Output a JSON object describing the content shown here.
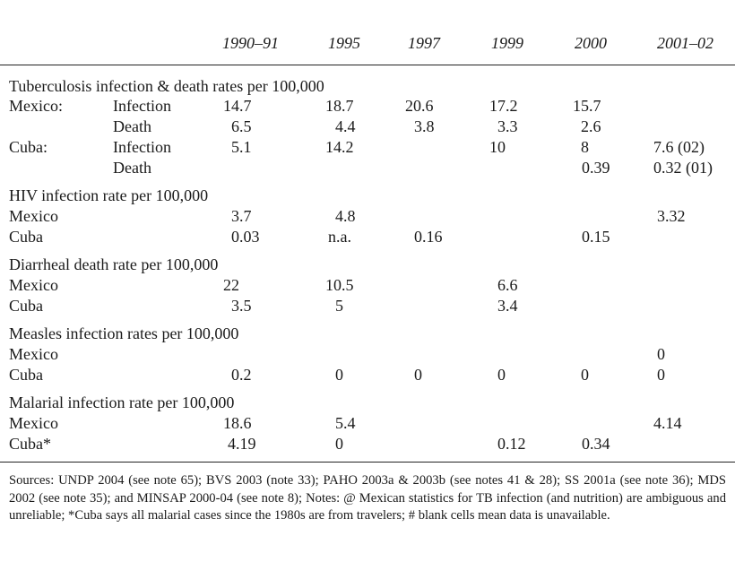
{
  "years": [
    "1990–91",
    "1995",
    "1997",
    "1999",
    "2000",
    "2001–02"
  ],
  "tb": {
    "heading": "Tuberculosis infection & death rates per 100,000",
    "mexico_label": "Mexico:",
    "cuba_label": "Cuba:",
    "infection_label": "Infection",
    "death_label": "Death",
    "mexico_infection": [
      "14.7",
      "18.7",
      "20.6",
      "17.2",
      "15.7",
      ""
    ],
    "mexico_death": [
      "6.5",
      "4.4",
      "3.8",
      "3.3",
      "2.6",
      ""
    ],
    "cuba_infection": [
      "5.1",
      "14.2",
      "",
      "10",
      "8",
      "7.6 (02)"
    ],
    "cuba_death": [
      "",
      "",
      "",
      "",
      "0.39",
      "0.32 (01)"
    ]
  },
  "hiv": {
    "heading": "HIV infection rate per 100,000",
    "mexico_label": "Mexico",
    "cuba_label": "Cuba",
    "mexico": [
      "3.7",
      "4.8",
      "",
      "",
      "",
      "3.32"
    ],
    "cuba": [
      "0.03",
      "n.a.",
      "0.16",
      "",
      "0.15",
      ""
    ]
  },
  "diarrheal": {
    "heading": "Diarrheal death rate per 100,000",
    "mexico_label": "Mexico",
    "cuba_label": "Cuba",
    "mexico": [
      "22",
      "10.5",
      "",
      "6.6",
      "",
      ""
    ],
    "cuba": [
      "3.5",
      "5",
      "",
      "3.4",
      "",
      ""
    ]
  },
  "measles": {
    "heading": "Measles infection rates per 100,000",
    "mexico_label": "Mexico",
    "cuba_label": "Cuba",
    "mexico": [
      "",
      "",
      "",
      "",
      "",
      "0"
    ],
    "cuba": [
      "0.2",
      "0",
      "0",
      "0",
      "0",
      "0"
    ]
  },
  "malaria": {
    "heading": "Malarial infection rate per 100,000",
    "mexico_label": "Mexico",
    "cuba_label": "Cuba*",
    "mexico": [
      "18.6",
      "5.4",
      "",
      "",
      "",
      "4.14"
    ],
    "cuba": [
      "4.19",
      "0",
      "",
      "0.12",
      "0.34",
      ""
    ]
  },
  "footnote": "Sources: UNDP 2004 (see note 65); BVS 2003 (note 33); PAHO 2003a & 2003b (see notes 41 & 28); SS 2001a (see note 36); MDS 2002 (see note 35); and MINSAP 2000-04 (see note 8); Notes: @ Mexican statistics for TB infection (and nutrition) are ambiguous and unreliable; *Cuba says all malarial cases since the 1980s are from travelers; # blank cells mean data is unavailable."
}
